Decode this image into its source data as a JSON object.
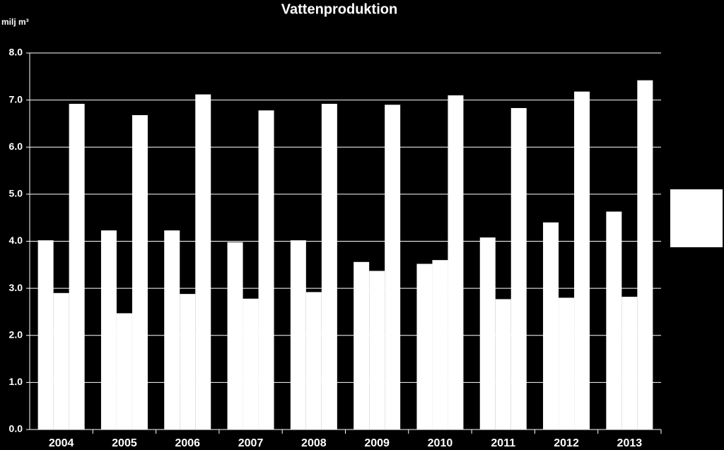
{
  "chart_data": {
    "type": "bar",
    "title": "Vattenproduktion",
    "y_label": "milj m³",
    "categories": [
      "2004",
      "2005",
      "2006",
      "2007",
      "2008",
      "2009",
      "2010",
      "2011",
      "2012",
      "2013"
    ],
    "series": [
      {
        "color": "#ffffff",
        "values": [
          4.02,
          4.23,
          4.23,
          3.98,
          4.02,
          3.56,
          3.52,
          4.08,
          4.4,
          4.63
        ]
      },
      {
        "color": "#ffffff",
        "values": [
          2.9,
          2.47,
          2.88,
          2.78,
          2.92,
          3.37,
          3.6,
          2.77,
          2.8,
          2.82
        ]
      },
      {
        "color": "#ffffff",
        "values": [
          6.92,
          6.68,
          7.12,
          6.78,
          6.92,
          6.9,
          7.1,
          6.83,
          7.18,
          7.42
        ]
      }
    ],
    "ylim": [
      0,
      8
    ],
    "yticks": [
      {
        "value": 0,
        "label": "0.0"
      },
      {
        "value": 1,
        "label": "1.0"
      },
      {
        "value": 2,
        "label": "2.0"
      },
      {
        "value": 3,
        "label": "3.0"
      },
      {
        "value": 4,
        "label": "4.0"
      },
      {
        "value": 5,
        "label": "5.0"
      },
      {
        "value": 6,
        "label": "6.0"
      },
      {
        "value": 7,
        "label": "7.0"
      },
      {
        "value": 8,
        "label": "8.0"
      }
    ],
    "grid": true
  }
}
